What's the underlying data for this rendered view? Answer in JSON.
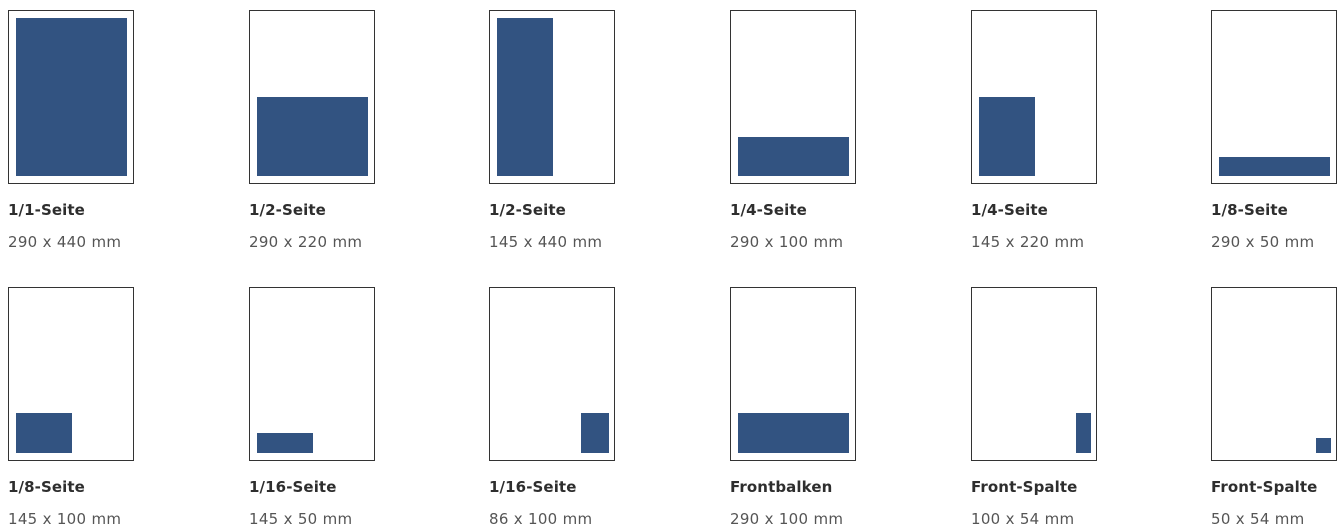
{
  "colors": {
    "ad_fill": "#325381",
    "page_border": "#333333"
  },
  "formats": [
    {
      "label": "1/1-Seite",
      "size": "290 x 440 mm"
    },
    {
      "label": "1/2-Seite",
      "size": "290 x 220 mm"
    },
    {
      "label": "1/2-Seite",
      "size": "145 x 440 mm"
    },
    {
      "label": "1/4-Seite",
      "size": "290 x 100 mm"
    },
    {
      "label": "1/4-Seite",
      "size": "145 x 220 mm"
    },
    {
      "label": "1/8-Seite",
      "size": "290 x 50 mm"
    },
    {
      "label": "1/8-Seite",
      "size": "145 x 100 mm"
    },
    {
      "label": "1/16-Seite",
      "size": "145 x 50 mm"
    },
    {
      "label": "1/16-Seite",
      "size": "86 x 100 mm"
    },
    {
      "label": "Frontbalken",
      "size": "290 x 100 mm"
    },
    {
      "label": "Front-Spalte",
      "size": "100 x 54 mm"
    },
    {
      "label": "Front-Spalte",
      "size": "50 x 54 mm"
    }
  ]
}
